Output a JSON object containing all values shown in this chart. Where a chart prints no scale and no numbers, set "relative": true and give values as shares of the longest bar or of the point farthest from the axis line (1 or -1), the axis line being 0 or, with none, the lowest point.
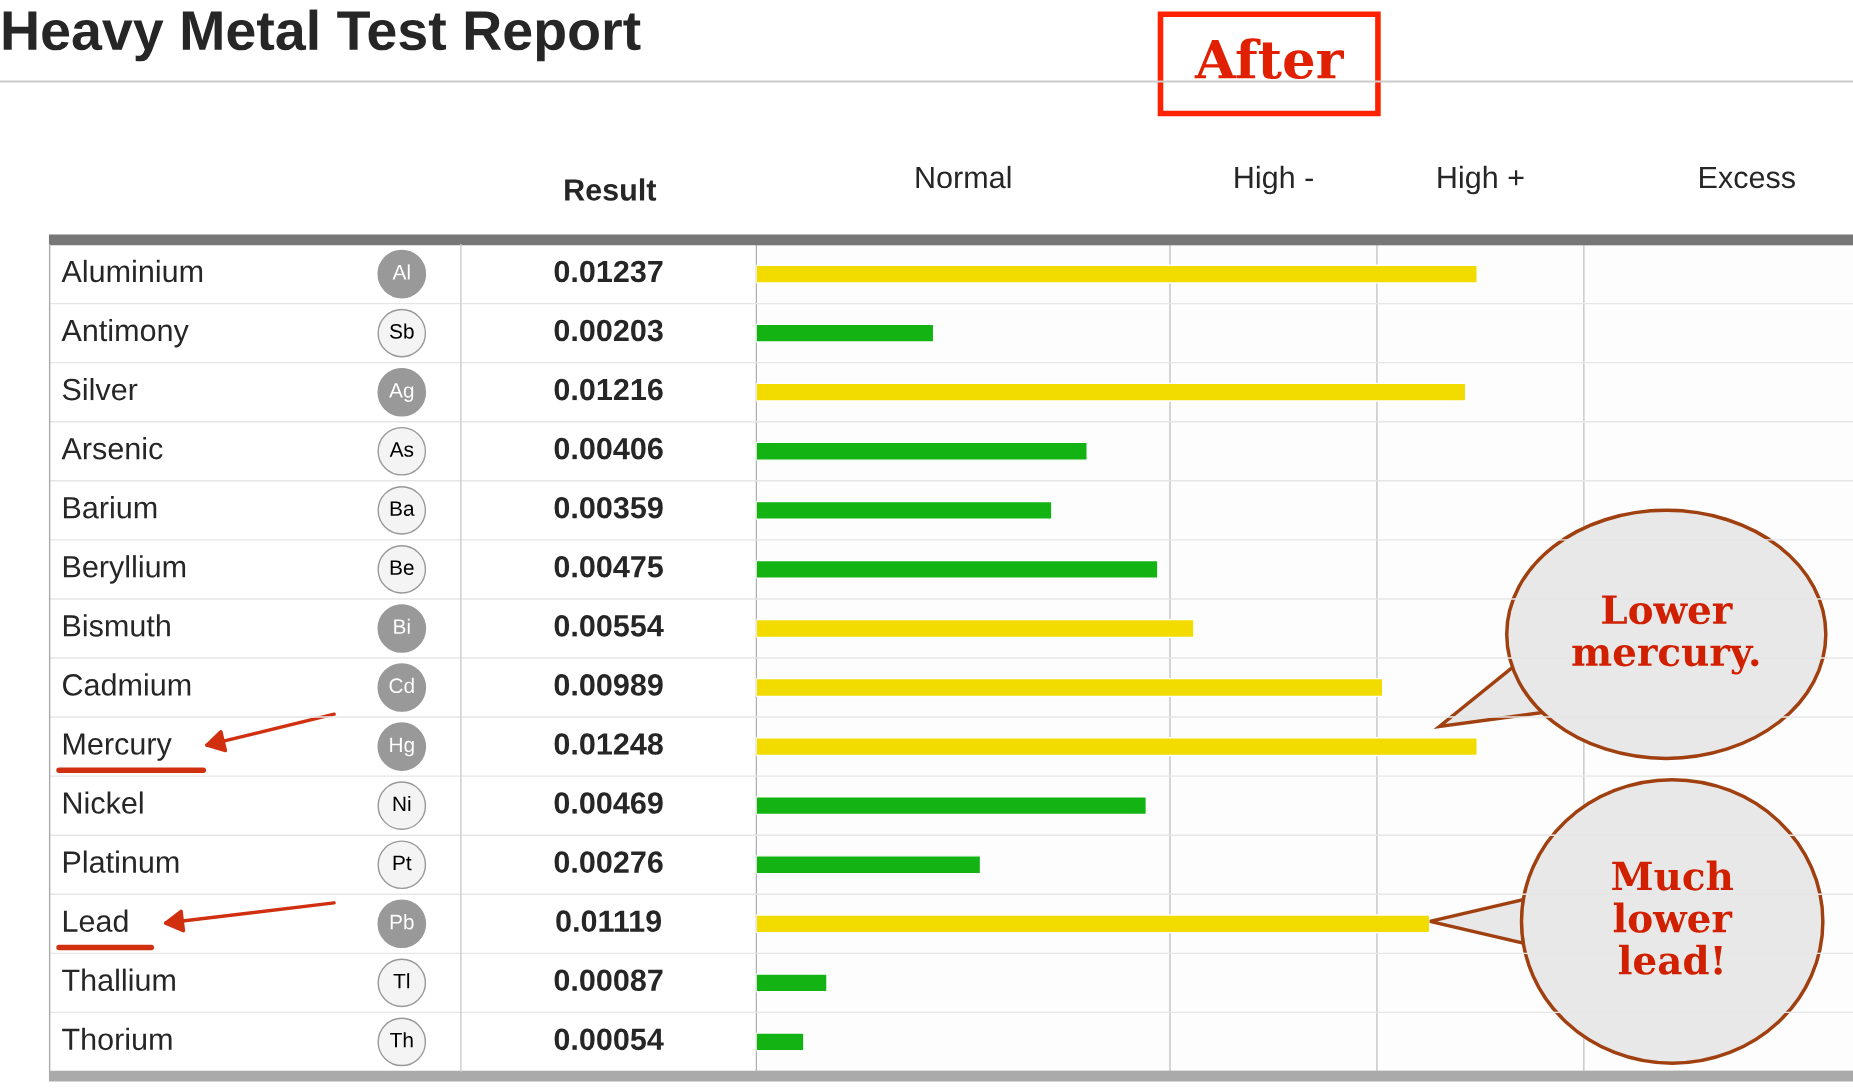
{
  "chart_data": {
    "type": "bar",
    "orientation": "horizontal",
    "relative": true,
    "title": "Heavy Metal Test Report",
    "categories": [
      "Aluminium",
      "Antimony",
      "Silver",
      "Arsenic",
      "Barium",
      "Beryllium",
      "Bismuth",
      "Cadmium",
      "Mercury",
      "Nickel",
      "Platinum",
      "Lead",
      "Thallium",
      "Thorium"
    ],
    "values": [
      1.0,
      0.246,
      0.984,
      0.459,
      0.41,
      0.557,
      0.607,
      0.869,
      1.0,
      0.541,
      0.311,
      0.934,
      0.098,
      0.066
    ],
    "colors": [
      "#f2dc00",
      "#12b312",
      "#f2dc00",
      "#12b312",
      "#12b312",
      "#12b312",
      "#f2dc00",
      "#f2dc00",
      "#f2dc00",
      "#12b312",
      "#12b312",
      "#f2dc00",
      "#12b312",
      "#12b312"
    ],
    "bands": [
      {
        "axis": "x",
        "from": 0,
        "to": 0.574,
        "label": "Normal"
      },
      {
        "axis": "x",
        "from": 0.574,
        "to": 0.861,
        "label": "High -"
      },
      {
        "axis": "x",
        "from": 0.861,
        "to": 1.148,
        "label": "High +"
      },
      {
        "axis": "x",
        "from": 1.148,
        "to": 1.6,
        "label": "Excess"
      }
    ],
    "annotations": [
      "Result",
      "0.01237",
      "0.00203",
      "0.01216",
      "0.00406",
      "0.00359",
      "0.00475",
      "0.00554",
      "0.00989",
      "0.01248",
      "0.00469",
      "0.00276",
      "0.01119",
      "0.00087",
      "0.00054",
      "Al",
      "Sb",
      "Ag",
      "As",
      "Ba",
      "Be",
      "Bi",
      "Cd",
      "Hg",
      "Ni",
      "Pt",
      "Pb",
      "Tl",
      "Th",
      "After",
      "Lower\nmercury.",
      "Much\nlower\nlead!"
    ]
  }
}
